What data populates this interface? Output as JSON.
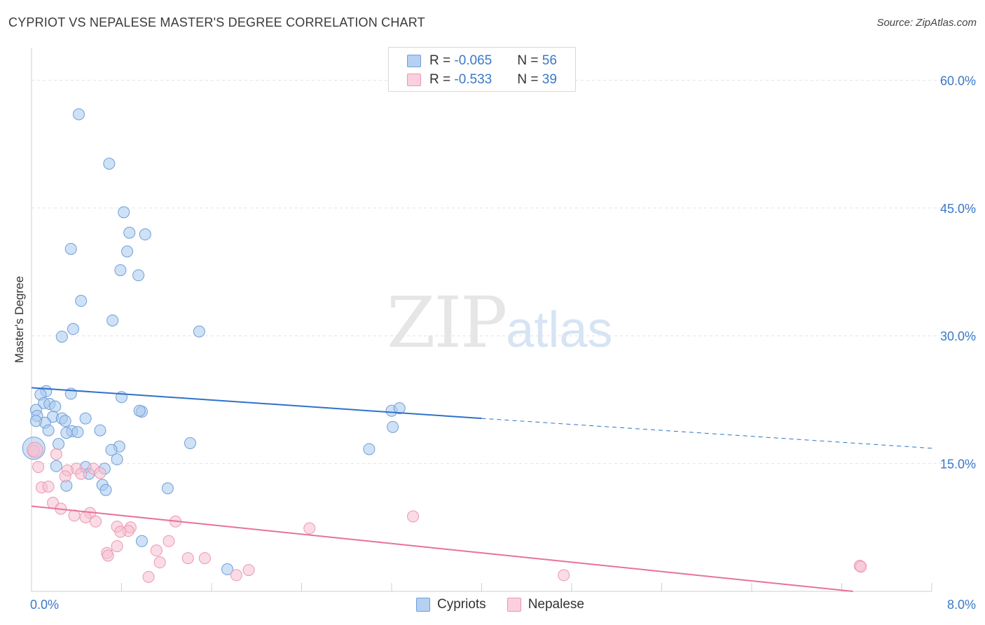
{
  "header": {
    "title": "CYPRIOT VS NEPALESE MASTER'S DEGREE CORRELATION CHART",
    "source": "Source: ZipAtlas.com"
  },
  "legend_top": {
    "rows": [
      {
        "r_label": "R = ",
        "r_value": "-0.065",
        "n_label": "N = ",
        "n_value": "56"
      },
      {
        "r_label": "R = ",
        "r_value": "-0.533",
        "n_label": "N = ",
        "n_value": "39"
      }
    ]
  },
  "watermark": {
    "zip": "ZIP",
    "atlas": "atlas"
  },
  "colors": {
    "blue_fill": "#a8c8ee",
    "blue_stroke": "#6f9fd8",
    "blue_line": "#2f72c9",
    "pink_fill": "#f6bfd0",
    "pink_stroke": "#ec97b2",
    "pink_line": "#e8729c",
    "tick_text": "#3a78c8",
    "grid": "#e2e2e2"
  },
  "chart_data": {
    "type": "scatter",
    "title": "CYPRIOT VS NEPALESE MASTER'S DEGREE CORRELATION CHART",
    "xlabel": "",
    "ylabel": "Master's Degree",
    "xlim": [
      0,
      8
    ],
    "ylim": [
      0,
      63
    ],
    "x_tick_labels": [
      "0.0%",
      "8.0%"
    ],
    "y_ticks": [
      15,
      30,
      45,
      60
    ],
    "y_tick_labels": [
      "15.0%",
      "30.0%",
      "45.0%",
      "60.0%"
    ],
    "legend": [
      "Cypriots",
      "Nepalese"
    ],
    "series": [
      {
        "name": "Cypriots",
        "r": -0.065,
        "n": 56,
        "trend": {
          "x0": 0,
          "y0": 23.9,
          "x1": 4.0,
          "y1": 20.3,
          "dash_x1": 8.0,
          "dash_y1": 16.8
        },
        "points": [
          [
            0.42,
            56.0
          ],
          [
            0.69,
            50.2
          ],
          [
            0.82,
            44.5
          ],
          [
            0.87,
            42.1
          ],
          [
            1.01,
            41.9
          ],
          [
            0.35,
            40.2
          ],
          [
            0.85,
            39.9
          ],
          [
            0.79,
            37.7
          ],
          [
            0.95,
            37.1
          ],
          [
            0.44,
            34.1
          ],
          [
            0.72,
            31.8
          ],
          [
            0.37,
            30.8
          ],
          [
            0.27,
            29.9
          ],
          [
            1.49,
            30.5
          ],
          [
            0.13,
            23.5
          ],
          [
            0.08,
            23.1
          ],
          [
            0.35,
            23.2
          ],
          [
            0.8,
            22.8
          ],
          [
            0.11,
            22.1
          ],
          [
            0.16,
            22.0
          ],
          [
            0.21,
            21.7
          ],
          [
            0.04,
            21.3
          ],
          [
            0.98,
            21.1
          ],
          [
            0.96,
            21.2
          ],
          [
            0.05,
            20.6
          ],
          [
            0.19,
            20.5
          ],
          [
            0.27,
            20.3
          ],
          [
            0.48,
            20.3
          ],
          [
            0.3,
            20.0
          ],
          [
            0.12,
            19.8
          ],
          [
            0.04,
            20.0
          ],
          [
            0.15,
            18.9
          ],
          [
            0.36,
            18.8
          ],
          [
            0.61,
            18.9
          ],
          [
            0.31,
            18.6
          ],
          [
            0.41,
            18.7
          ],
          [
            3.2,
            21.2
          ],
          [
            3.27,
            21.5
          ],
          [
            3.21,
            19.3
          ],
          [
            0.24,
            17.3
          ],
          [
            0.78,
            17.0
          ],
          [
            0.71,
            16.6
          ],
          [
            1.41,
            17.4
          ],
          [
            0.76,
            15.5
          ],
          [
            3.0,
            16.7
          ],
          [
            0.22,
            14.7
          ],
          [
            0.48,
            14.6
          ],
          [
            0.65,
            14.4
          ],
          [
            0.51,
            13.8
          ],
          [
            0.63,
            12.5
          ],
          [
            0.66,
            11.9
          ],
          [
            0.31,
            12.4
          ],
          [
            1.21,
            12.1
          ],
          [
            0.98,
            5.9
          ],
          [
            1.74,
            2.6
          ],
          [
            0.02,
            16.8
          ]
        ]
      },
      {
        "name": "Nepalese",
        "r": -0.533,
        "n": 39,
        "trend": {
          "x0": 0,
          "y0": 10.0,
          "x1": 7.3,
          "y1": 0.0
        },
        "points": [
          [
            0.02,
            16.5
          ],
          [
            0.22,
            16.1
          ],
          [
            0.06,
            14.6
          ],
          [
            0.4,
            14.4
          ],
          [
            0.55,
            14.4
          ],
          [
            0.32,
            14.2
          ],
          [
            0.61,
            13.9
          ],
          [
            0.3,
            13.5
          ],
          [
            0.44,
            13.8
          ],
          [
            0.09,
            12.2
          ],
          [
            0.15,
            12.3
          ],
          [
            0.19,
            10.4
          ],
          [
            0.26,
            9.7
          ],
          [
            0.52,
            9.2
          ],
          [
            0.38,
            8.9
          ],
          [
            0.48,
            8.7
          ],
          [
            3.39,
            8.8
          ],
          [
            0.57,
            8.2
          ],
          [
            1.28,
            8.2
          ],
          [
            0.76,
            7.6
          ],
          [
            0.88,
            7.5
          ],
          [
            2.47,
            7.4
          ],
          [
            0.86,
            7.1
          ],
          [
            0.79,
            7.0
          ],
          [
            1.22,
            5.9
          ],
          [
            0.76,
            5.3
          ],
          [
            1.11,
            4.8
          ],
          [
            0.67,
            4.5
          ],
          [
            0.68,
            4.2
          ],
          [
            1.39,
            3.9
          ],
          [
            1.54,
            3.9
          ],
          [
            1.14,
            3.4
          ],
          [
            1.93,
            2.5
          ],
          [
            1.82,
            1.9
          ],
          [
            1.04,
            1.7
          ],
          [
            4.73,
            1.9
          ],
          [
            7.36,
            3.0
          ],
          [
            7.37,
            2.9
          ],
          [
            0.03,
            16.6
          ]
        ]
      }
    ]
  }
}
